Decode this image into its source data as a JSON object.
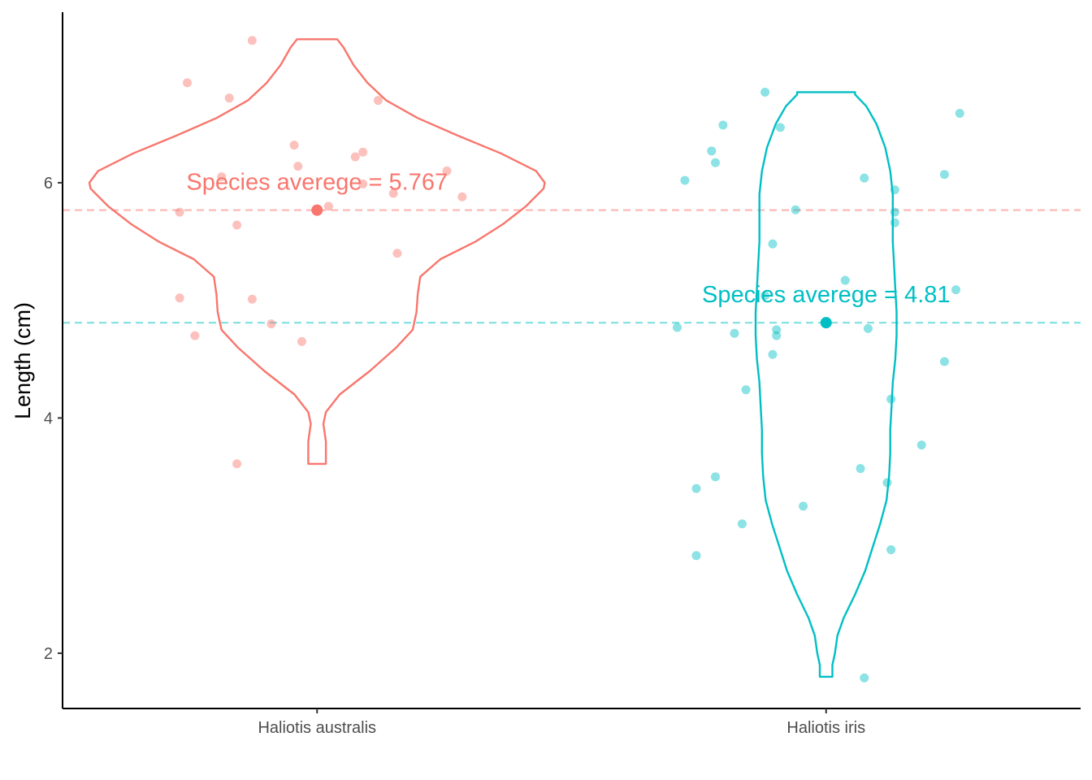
{
  "chart_data": {
    "type": "violin",
    "title": "",
    "xlabel": "",
    "ylabel": "Length (cm)",
    "ylim": [
      1.53,
      7.45
    ],
    "yticks": [
      2,
      4,
      6
    ],
    "grid": false,
    "legend": "none",
    "categories": [
      "Haliotis australis",
      "Haliotis iris"
    ],
    "series": [
      {
        "category": "Haliotis australis",
        "color": "#F8766D",
        "mean": 5.767,
        "mean_label": "Species averege = 5.767",
        "violin_profile": [
          [
            3.61,
            0.07
          ],
          [
            3.7,
            0.07
          ],
          [
            3.8,
            0.07
          ],
          [
            3.95,
            0.05
          ],
          [
            4.05,
            0.07
          ],
          [
            4.2,
            0.18
          ],
          [
            4.4,
            0.42
          ],
          [
            4.6,
            0.63
          ],
          [
            4.75,
            0.76
          ],
          [
            4.9,
            0.79
          ],
          [
            5.05,
            0.8
          ],
          [
            5.2,
            0.82
          ],
          [
            5.35,
            0.98
          ],
          [
            5.5,
            1.26
          ],
          [
            5.65,
            1.48
          ],
          [
            5.8,
            1.66
          ],
          [
            5.95,
            1.8
          ],
          [
            6.0,
            1.81
          ],
          [
            6.1,
            1.74
          ],
          [
            6.25,
            1.46
          ],
          [
            6.4,
            1.12
          ],
          [
            6.55,
            0.8
          ],
          [
            6.7,
            0.55
          ],
          [
            6.85,
            0.4
          ],
          [
            7.0,
            0.29
          ],
          [
            7.15,
            0.21
          ],
          [
            7.22,
            0.16
          ]
        ],
        "points": [
          [
            -0.17,
            7.21
          ],
          [
            -0.34,
            6.85
          ],
          [
            -0.23,
            6.72
          ],
          [
            0.16,
            6.7
          ],
          [
            -0.06,
            6.32
          ],
          [
            0.12,
            6.26
          ],
          [
            0.1,
            6.22
          ],
          [
            -0.05,
            6.14
          ],
          [
            -0.25,
            6.05
          ],
          [
            0.34,
            6.1
          ],
          [
            0.12,
            5.99
          ],
          [
            0.2,
            5.91
          ],
          [
            0.38,
            5.88
          ],
          [
            0.03,
            5.8
          ],
          [
            0.0,
            5.767
          ],
          [
            -0.36,
            5.75
          ],
          [
            -0.21,
            5.64
          ],
          [
            0.21,
            5.4
          ],
          [
            -0.36,
            5.02
          ],
          [
            -0.17,
            5.01
          ],
          [
            -0.12,
            4.8
          ],
          [
            -0.32,
            4.7
          ],
          [
            -0.04,
            4.65
          ],
          [
            -0.21,
            3.61
          ]
        ]
      },
      {
        "category": "Haliotis iris",
        "color": "#00BFC4",
        "mean": 4.81,
        "mean_label": "Species averege = 4.81",
        "violin_profile": [
          [
            1.8,
            0.05
          ],
          [
            1.9,
            0.05
          ],
          [
            2.0,
            0.07
          ],
          [
            2.15,
            0.09
          ],
          [
            2.3,
            0.14
          ],
          [
            2.5,
            0.23
          ],
          [
            2.7,
            0.31
          ],
          [
            2.9,
            0.37
          ],
          [
            3.1,
            0.43
          ],
          [
            3.3,
            0.48
          ],
          [
            3.5,
            0.5
          ],
          [
            3.7,
            0.51
          ],
          [
            3.9,
            0.51
          ],
          [
            4.1,
            0.52
          ],
          [
            4.3,
            0.53
          ],
          [
            4.5,
            0.55
          ],
          [
            4.7,
            0.56
          ],
          [
            4.9,
            0.56
          ],
          [
            5.1,
            0.55
          ],
          [
            5.3,
            0.54
          ],
          [
            5.5,
            0.53
          ],
          [
            5.7,
            0.53
          ],
          [
            5.9,
            0.53
          ],
          [
            6.1,
            0.51
          ],
          [
            6.3,
            0.47
          ],
          [
            6.5,
            0.4
          ],
          [
            6.65,
            0.32
          ],
          [
            6.75,
            0.23
          ],
          [
            6.77,
            0.23
          ]
        ],
        "points": [
          [
            -0.16,
            6.77
          ],
          [
            0.35,
            6.59
          ],
          [
            -0.27,
            6.49
          ],
          [
            -0.12,
            6.47
          ],
          [
            -0.3,
            6.27
          ],
          [
            -0.29,
            6.17
          ],
          [
            0.31,
            6.07
          ],
          [
            0.1,
            6.04
          ],
          [
            -0.37,
            6.02
          ],
          [
            0.18,
            5.94
          ],
          [
            -0.08,
            5.77
          ],
          [
            0.18,
            5.75
          ],
          [
            0.18,
            5.66
          ],
          [
            -0.14,
            5.48
          ],
          [
            0.05,
            5.17
          ],
          [
            0.34,
            5.09
          ],
          [
            -0.16,
            5.04
          ],
          [
            -0.39,
            4.77
          ],
          [
            0.11,
            4.76
          ],
          [
            -0.13,
            4.75
          ],
          [
            -0.24,
            4.72
          ],
          [
            -0.13,
            4.7
          ],
          [
            -0.14,
            4.54
          ],
          [
            0.31,
            4.48
          ],
          [
            -0.21,
            4.24
          ],
          [
            0.17,
            4.16
          ],
          [
            0.25,
            3.77
          ],
          [
            0.09,
            3.57
          ],
          [
            -0.29,
            3.5
          ],
          [
            0.16,
            3.45
          ],
          [
            -0.34,
            3.4
          ],
          [
            -0.06,
            3.25
          ],
          [
            -0.22,
            3.1
          ],
          [
            0.17,
            2.88
          ],
          [
            -0.34,
            2.83
          ],
          [
            0.1,
            1.79
          ]
        ]
      }
    ]
  }
}
